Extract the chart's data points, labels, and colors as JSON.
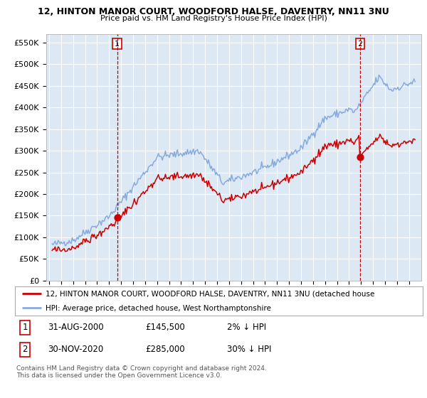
{
  "title1": "12, HINTON MANOR COURT, WOODFORD HALSE, DAVENTRY, NN11 3NU",
  "title2": "Price paid vs. HM Land Registry's House Price Index (HPI)",
  "bg_color": "#dce9f5",
  "grid_color": "#ffffff",
  "ylim": [
    0,
    570000
  ],
  "yticks": [
    0,
    50000,
    100000,
    150000,
    200000,
    250000,
    300000,
    350000,
    400000,
    450000,
    500000,
    550000
  ],
  "ytick_labels": [
    "£0",
    "£50K",
    "£100K",
    "£150K",
    "£200K",
    "£250K",
    "£300K",
    "£350K",
    "£400K",
    "£450K",
    "£500K",
    "£550K"
  ],
  "sale1_date_num": 2000.667,
  "sale1_price": 145500,
  "sale2_date_num": 2020.917,
  "sale2_price": 285000,
  "red_line_color": "#cc0000",
  "blue_line_color": "#88aadd",
  "dashed_color": "#cc0000",
  "marker_color": "#cc0000",
  "legend_label1": "12, HINTON MANOR COURT, WOODFORD HALSE, DAVENTRY, NN11 3NU (detached house",
  "legend_label2": "HPI: Average price, detached house, West Northamptonshire",
  "table_row1": [
    "1",
    "31-AUG-2000",
    "£145,500",
    "2% ↓ HPI"
  ],
  "table_row2": [
    "2",
    "30-NOV-2020",
    "£285,000",
    "30% ↓ HPI"
  ],
  "footer": "Contains HM Land Registry data © Crown copyright and database right 2024.\nThis data is licensed under the Open Government Licence v3.0."
}
